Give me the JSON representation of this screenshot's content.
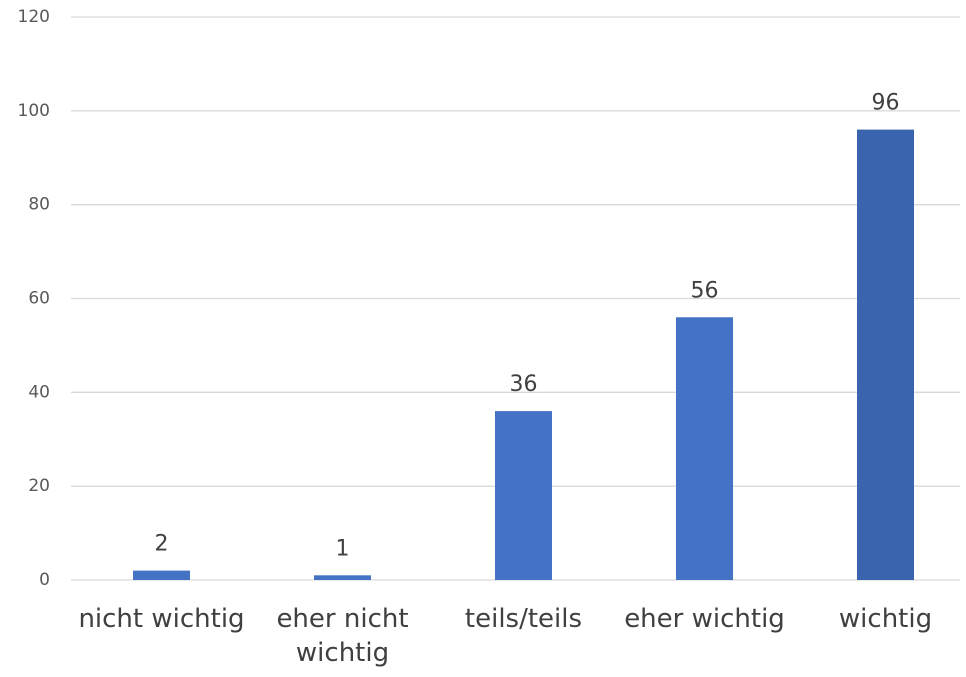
{
  "chart_data": {
    "type": "bar",
    "categories": [
      "nicht wichtig",
      "eher nicht wichtig",
      "teils/teils",
      "eher wichtig",
      "wichtig"
    ],
    "values": [
      2,
      1,
      36,
      56,
      96
    ],
    "colors": [
      "#4472c4",
      "#4472c4",
      "#4472c4",
      "#4472c4",
      "#3a64ad"
    ],
    "ylim": [
      0,
      120
    ],
    "yticks": [
      0,
      20,
      40,
      60,
      80,
      100,
      120
    ],
    "grid": true
  }
}
